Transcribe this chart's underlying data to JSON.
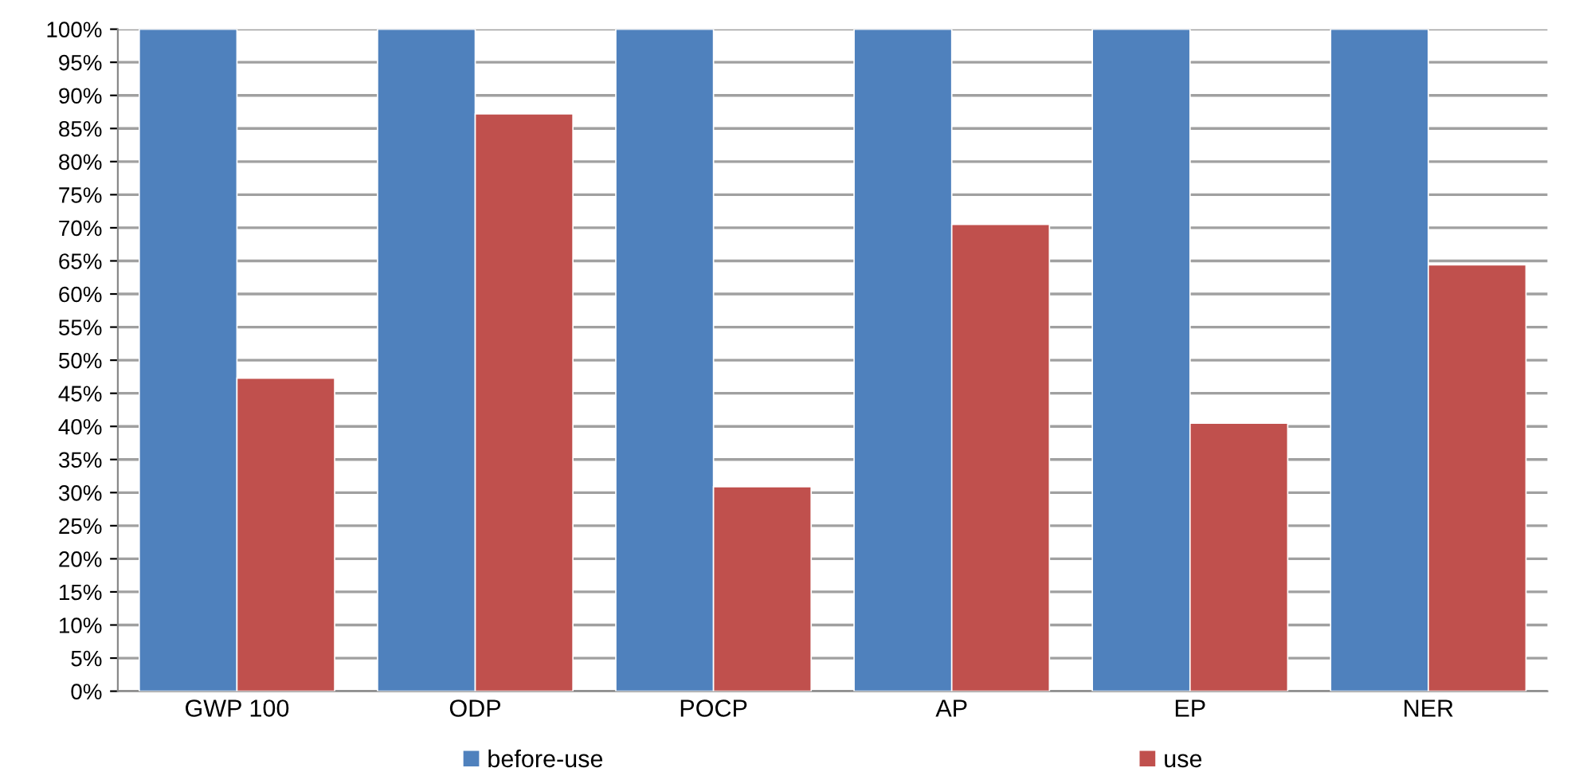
{
  "chart_data": {
    "type": "bar",
    "categories": [
      "GWP 100",
      "ODP",
      "POCP",
      "AP",
      "EP",
      "NER"
    ],
    "series": [
      {
        "name": "before-use",
        "color": "#4f81bd",
        "values": [
          100,
          100,
          100,
          100,
          100,
          100
        ]
      },
      {
        "name": "use",
        "color": "#c0504d",
        "values": [
          47.3,
          87.2,
          30.9,
          70.5,
          40.5,
          64.4
        ]
      }
    ],
    "ylim": [
      0,
      100
    ],
    "yticks": [
      {
        "value": 0,
        "label": "0%"
      },
      {
        "value": 5,
        "label": "5%"
      },
      {
        "value": 10,
        "label": "10%"
      },
      {
        "value": 15,
        "label": "15%"
      },
      {
        "value": 20,
        "label": "20%"
      },
      {
        "value": 25,
        "label": "25%"
      },
      {
        "value": 30,
        "label": "30%"
      },
      {
        "value": 35,
        "label": "35%"
      },
      {
        "value": 40,
        "label": "40%"
      },
      {
        "value": 45,
        "label": "45%"
      },
      {
        "value": 50,
        "label": "50%"
      },
      {
        "value": 55,
        "label": "55%"
      },
      {
        "value": 60,
        "label": "60%"
      },
      {
        "value": 65,
        "label": "65%"
      },
      {
        "value": 70,
        "label": "70%"
      },
      {
        "value": 75,
        "label": "75%"
      },
      {
        "value": 80,
        "label": "80%"
      },
      {
        "value": 85,
        "label": "85%"
      },
      {
        "value": 90,
        "label": "90%"
      },
      {
        "value": 95,
        "label": "95%"
      },
      {
        "value": 100,
        "label": "100%"
      }
    ],
    "grid": "y",
    "legend": "bottom"
  }
}
